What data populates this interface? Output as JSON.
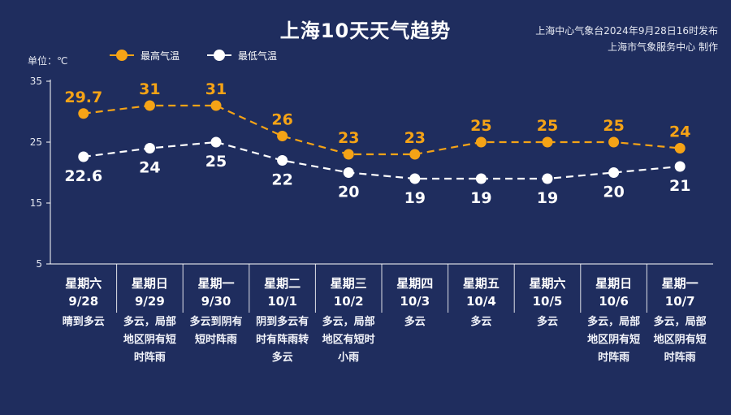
{
  "title": "上海10天天气趋势",
  "issuer": {
    "line1": "上海中心气象台2024年9月28日16时发布",
    "line2": "上海市气象服务中心 制作"
  },
  "unit_label": "单位：℃",
  "colors": {
    "background": "#1f2d5e",
    "high": "#f5a316",
    "low": "#ffffff",
    "axis": "#ffffff"
  },
  "chart_data": {
    "type": "line",
    "categories": [
      "9/28",
      "9/29",
      "9/30",
      "10/1",
      "10/2",
      "10/3",
      "10/4",
      "10/5",
      "10/6",
      "10/7"
    ],
    "series": [
      {
        "name": "最高气温",
        "values": [
          29.7,
          31,
          31,
          26,
          23,
          23,
          25,
          25,
          25,
          24
        ],
        "labels": [
          "29.7",
          "31",
          "31",
          "26",
          "23",
          "23",
          "25",
          "25",
          "25",
          "24"
        ],
        "style": "dashed",
        "marker": "circle"
      },
      {
        "name": "最低气温",
        "values": [
          22.6,
          24,
          25,
          22,
          20,
          19,
          19,
          19,
          20,
          21
        ],
        "labels": [
          "22.6",
          "24",
          "25",
          "22",
          "20",
          "19",
          "19",
          "19",
          "20",
          "21"
        ],
        "style": "dashed",
        "marker": "circle"
      }
    ],
    "ylim": [
      5,
      35
    ],
    "yticks": [
      "35",
      "25",
      "15",
      "5"
    ],
    "grid": false,
    "legend": "top-left",
    "days": [
      {
        "weekday": "星期六",
        "date": "9/28",
        "desc": [
          "晴到多云"
        ]
      },
      {
        "weekday": "星期日",
        "date": "9/29",
        "desc": [
          "多云，局部",
          "地区阴有短",
          "时阵雨"
        ]
      },
      {
        "weekday": "星期一",
        "date": "9/30",
        "desc": [
          "多云到阴有",
          "短时阵雨"
        ]
      },
      {
        "weekday": "星期二",
        "date": "10/1",
        "desc": [
          "阴到多云有",
          "时有阵雨转",
          "多云"
        ]
      },
      {
        "weekday": "星期三",
        "date": "10/2",
        "desc": [
          "多云，局部",
          "地区有短时",
          "小雨"
        ]
      },
      {
        "weekday": "星期四",
        "date": "10/3",
        "desc": [
          "多云"
        ]
      },
      {
        "weekday": "星期五",
        "date": "10/4",
        "desc": [
          "多云"
        ]
      },
      {
        "weekday": "星期六",
        "date": "10/5",
        "desc": [
          "多云"
        ]
      },
      {
        "weekday": "星期日",
        "date": "10/6",
        "desc": [
          "多云，局部",
          "地区阴有短",
          "时阵雨"
        ]
      },
      {
        "weekday": "星期一",
        "date": "10/7",
        "desc": [
          "多云，局部",
          "地区阴有短",
          "时阵雨"
        ]
      }
    ]
  }
}
